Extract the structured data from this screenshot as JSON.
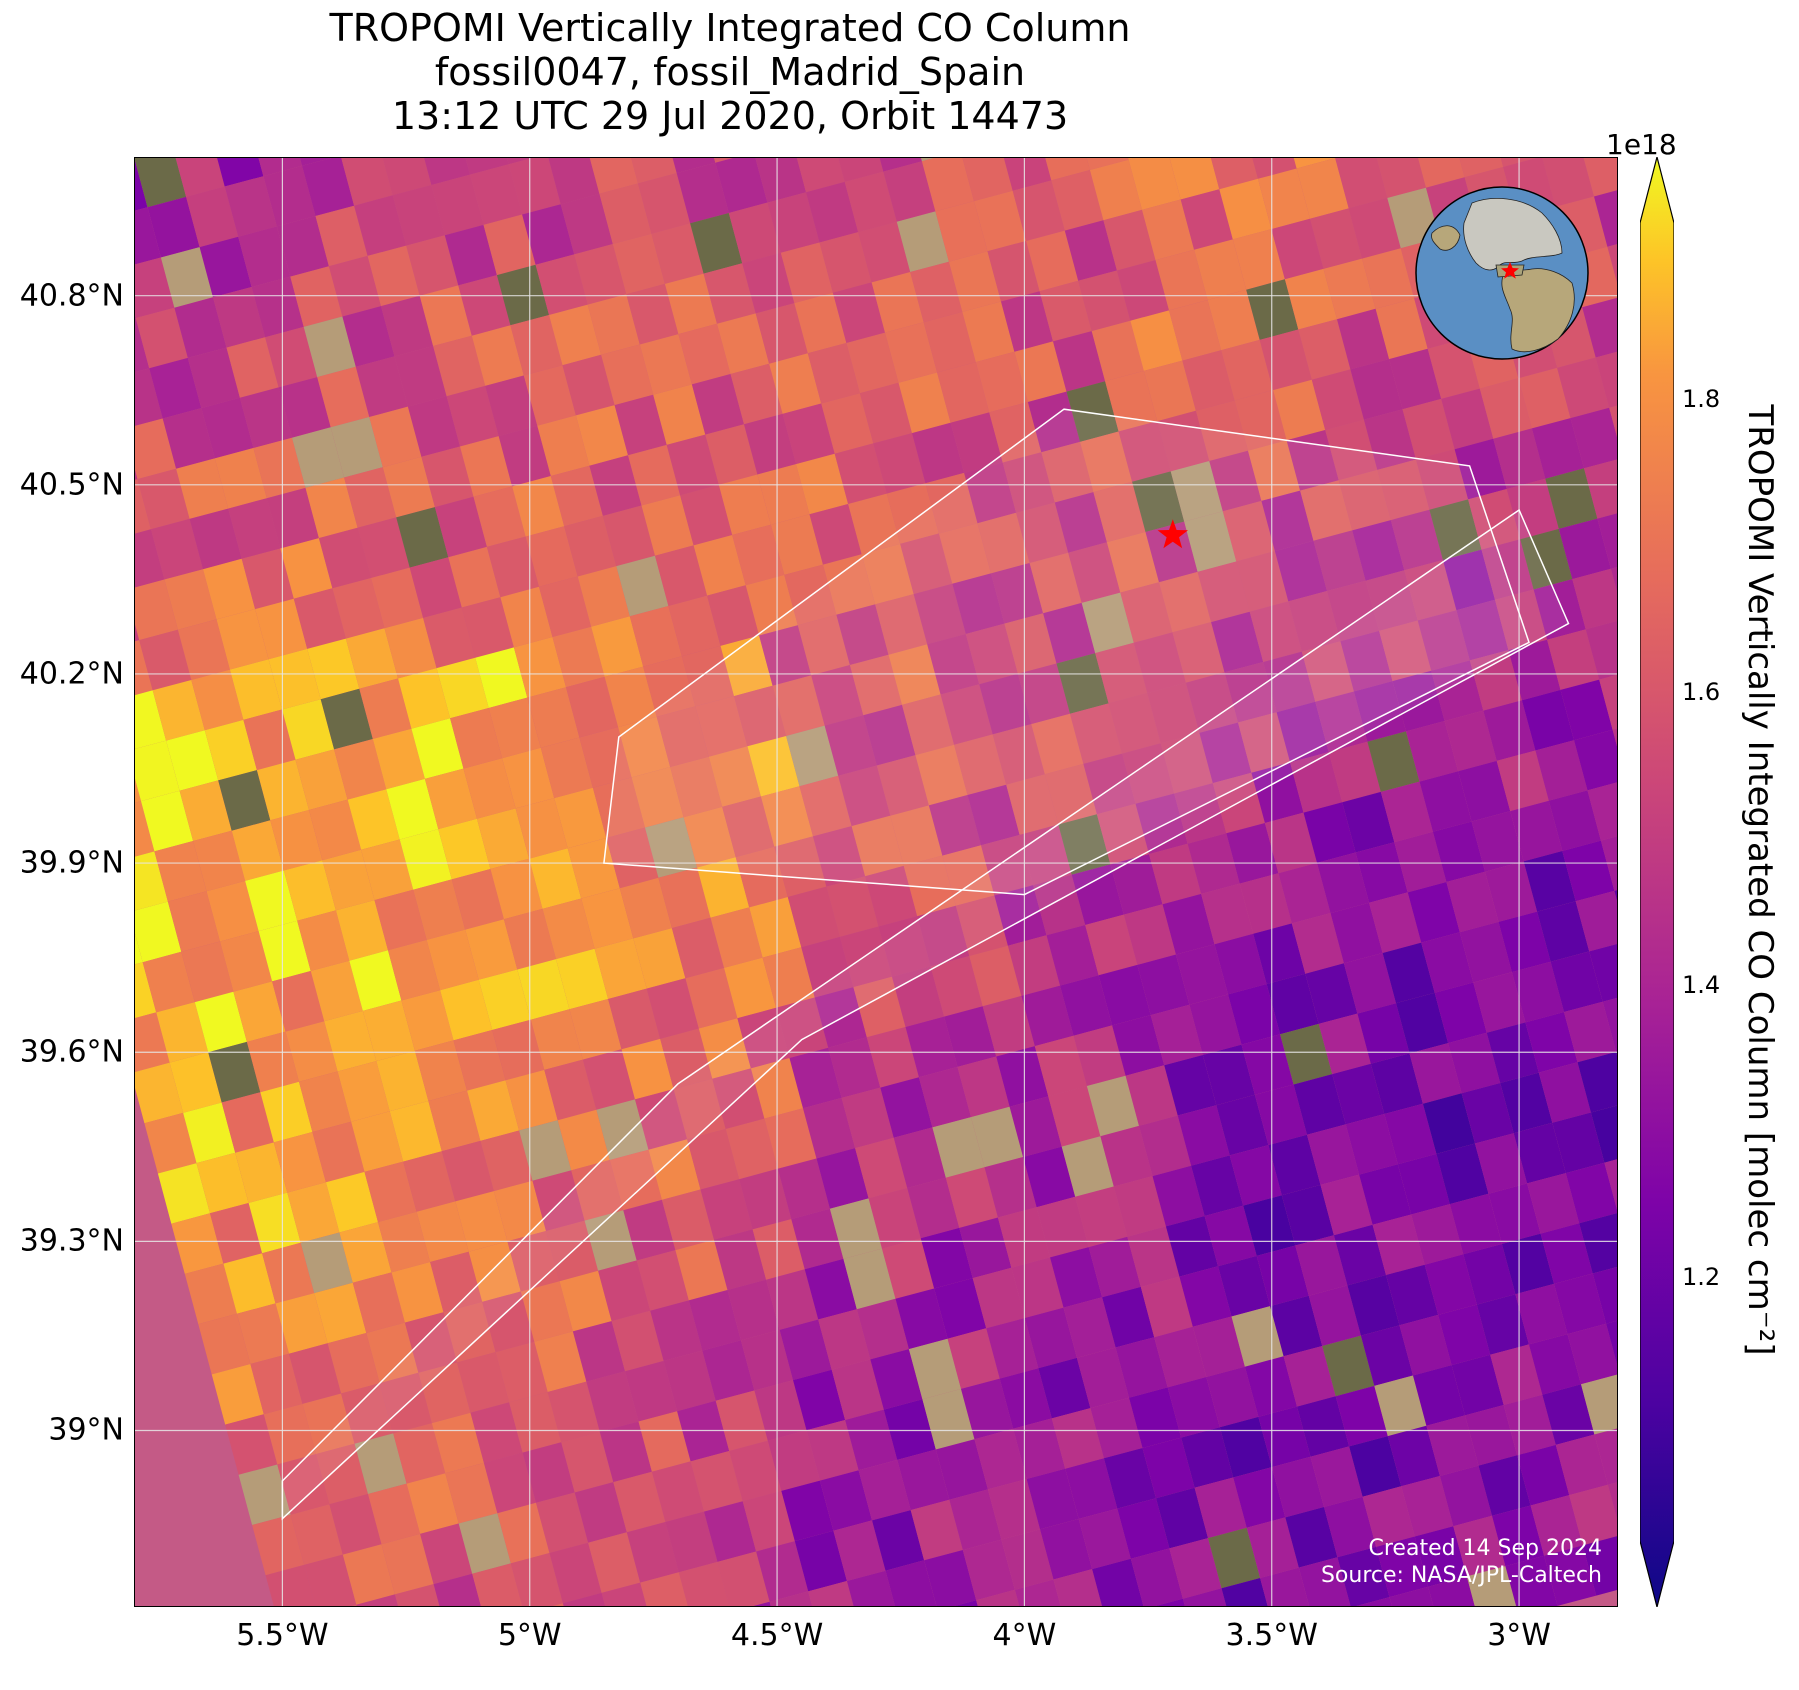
{
  "title": {
    "line1": "TROPOMI Vertically Integrated CO Column",
    "line2": "fossil0047, fossil_Madrid_Spain",
    "line3": "13:12 UTC 29 Jul 2020, Orbit 14473"
  },
  "map": {
    "lon_range": [
      -5.8,
      -2.8
    ],
    "lat_range": [
      38.72,
      41.02
    ],
    "lon_ticks": [
      {
        "value": -5.5,
        "label": "5.5°W"
      },
      {
        "value": -5.0,
        "label": "5°W"
      },
      {
        "value": -4.5,
        "label": "4.5°W"
      },
      {
        "value": -4.0,
        "label": "4°W"
      },
      {
        "value": -3.5,
        "label": "3.5°W"
      },
      {
        "value": -3.0,
        "label": "3°W"
      }
    ],
    "lat_ticks": [
      {
        "value": 40.8,
        "label": "40.8°N"
      },
      {
        "value": 40.5,
        "label": "40.5°N"
      },
      {
        "value": 40.2,
        "label": "40.2°N"
      },
      {
        "value": 39.9,
        "label": "39.9°N"
      },
      {
        "value": 39.6,
        "label": "39.6°N"
      },
      {
        "value": 39.3,
        "label": "39.3°N"
      },
      {
        "value": 39.0,
        "label": "39°N"
      }
    ],
    "gridlines": true,
    "target": {
      "name": "fossil_Madrid_Spain",
      "lon": -3.7,
      "lat": 40.42,
      "color": "#ff0000"
    },
    "target_swath": [
      [
        -4.82,
        40.1
      ],
      [
        -3.92,
        40.62
      ],
      [
        -3.1,
        40.53
      ],
      [
        -2.98,
        40.25
      ],
      [
        -4.0,
        39.85
      ],
      [
        -4.85,
        39.9
      ]
    ],
    "orbit_swath": [
      [
        -5.5,
        38.92
      ],
      [
        -4.7,
        39.55
      ],
      [
        -3.0,
        40.46
      ],
      [
        -2.9,
        40.28
      ],
      [
        -4.45,
        39.62
      ],
      [
        -5.5,
        38.86
      ]
    ],
    "colormap": "plasma",
    "credits": {
      "line1": "Created 14 Sep 2024",
      "line2": "Source: NASA/JPL-Caltech"
    }
  },
  "colorbar": {
    "exponent_label": "1e18",
    "min": 1.02,
    "max": 1.92,
    "ticks": [
      {
        "value": 1.2,
        "label": "1.2"
      },
      {
        "value": 1.4,
        "label": "1.4"
      },
      {
        "value": 1.6,
        "label": "1.6"
      },
      {
        "value": 1.8,
        "label": "1.8"
      }
    ],
    "label": "TROPOMI Vertically Integrated CO Column [molec cm⁻²]",
    "extend": "both"
  },
  "inset_globe": {
    "marker_color": "#ff0000",
    "ocean_color": "#5a8fc4",
    "land_color": "#b7a77a"
  }
}
